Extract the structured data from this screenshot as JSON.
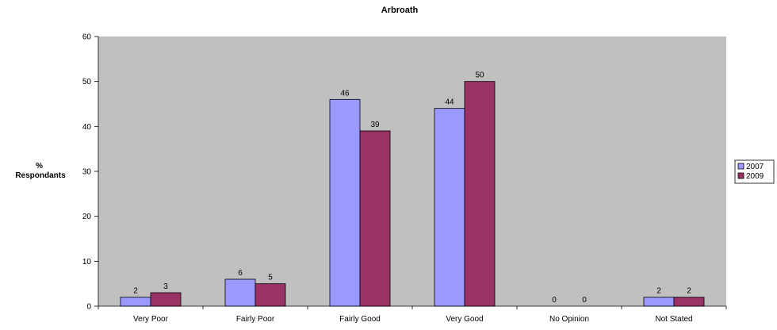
{
  "chart_data": {
    "type": "bar",
    "title": "Arbroath",
    "ylabel_lines": [
      "%",
      "Respondants"
    ],
    "xlabel": "",
    "categories": [
      "Very Poor",
      "Fairly Poor",
      "Fairly Good",
      "Very Good",
      "No Opinion",
      "Not Stated"
    ],
    "series": [
      {
        "name": "2007",
        "color": "#9999ff",
        "values": [
          2,
          6,
          46,
          44,
          0,
          2
        ]
      },
      {
        "name": "2009",
        "color": "#993366",
        "values": [
          3,
          5,
          39,
          50,
          0,
          2
        ]
      }
    ],
    "ylim": [
      0,
      60
    ],
    "yticks": [
      0,
      10,
      20,
      30,
      40,
      50,
      60
    ],
    "plot_background": "#c0c0c0",
    "grid": false,
    "legend_position": "right"
  }
}
